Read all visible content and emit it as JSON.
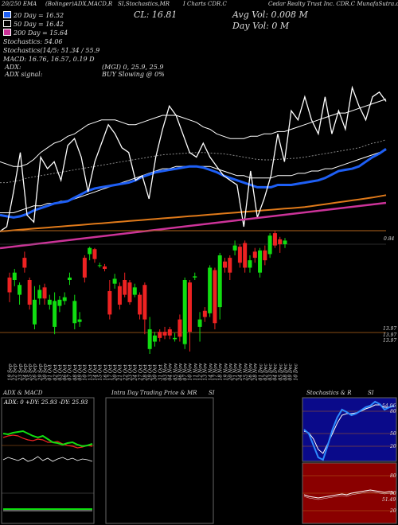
{
  "header": {
    "line1": [
      "20/250 EMA",
      "(Bolinger)ADX,MACD,R",
      "SI,Stochastics,MR",
      "I Charts CDR.C",
      "Cedar Realty Trust Inc. CDR.C MunafaSutra.com"
    ],
    "close": "CL: 16.81",
    "avg_vol": "Avg Vol: 0.008  M",
    "day_vol": "Day Vol: 0   M",
    "legend": [
      {
        "label": "20  Day = 16.52",
        "color": "#1e5ff5"
      },
      {
        "label": "50  Day = 16.42",
        "color": "#000000"
      },
      {
        "label": "200  Day = 15.64",
        "color": "#cc3399"
      }
    ],
    "info_lines": [
      "Stochastics: 54.06",
      "Stochastics(14/5: 51.34  / 55.9",
      "MACD: 16.76,  16.57,  0.19 D"
    ],
    "adx": "ADX:",
    "adx_mid": "(MGI) 0,  25.9,  25.9",
    "adx_signal": "ADX  signal:",
    "adx_signal_mid": "BUY Slowing @ 0%"
  },
  "price_labels": {
    "top": "0.84",
    "bottom1": "13.97",
    "bottom2": "13.97",
    "bottom3": "13.97"
  },
  "dates": [
    "19 Sep",
    "22 Sep",
    "23 Sep",
    "24 Sep",
    "25 Sep",
    "26 Sep",
    "29 Sep",
    "30 Sep",
    "01 Oct",
    "02 Oct",
    "03 Oct",
    "06 Oct",
    "07 Oct",
    "08 Oct",
    "09 Oct",
    "10 Oct",
    "13 Oct",
    "14 Oct",
    "15 Oct",
    "16 Oct",
    "17 Oct",
    "20 Oct",
    "21 Oct",
    "22 Oct",
    "23 Oct",
    "24 Oct",
    "27 Oct",
    "28 Oct",
    "29 Oct",
    "30 Oct",
    "31 Oct",
    "03 Nov",
    "04 Nov",
    "05 Nov",
    "06 Nov",
    "07 Nov",
    "10 Nov",
    "11 Nov",
    "12 Nov",
    "13 Nov",
    "14 Nov",
    "17 Nov",
    "18 Nov",
    "19 Nov",
    "20 Nov",
    "21 Nov",
    "24 Nov",
    "25 Nov",
    "26 Nov",
    "28 Nov",
    "01 Dec",
    "02 Dec",
    "03 Dec",
    "04 Dec",
    "05 Dec",
    "08 Dec",
    "09 Dec",
    "10 Dec"
  ],
  "panels": {
    "adx": {
      "title": "ADX  & MACD",
      "values": "ADX: 0   +DY: 25.93  -DY: 25.93"
    },
    "intraday": {
      "title": "Intra Day Trading Price  & MR",
      "si": "SI"
    },
    "stoch": {
      "title": "Stochastics & R",
      "si": "SI",
      "labels": [
        "80",
        "50",
        "20"
      ],
      "value": "54.06"
    },
    "rsi": {
      "labels": [
        "80",
        "50",
        "20"
      ],
      "value": "51.49"
    }
  },
  "chart_data": {
    "type": "candlestick",
    "series": [
      {
        "name": "20  Day = 16.52",
        "color": "#1e5ff5"
      },
      {
        "name": "50  Day = 16.42",
        "color": "#000000"
      },
      {
        "name": "200  Day = 15.64",
        "color": "#cc3399"
      }
    ],
    "candles": [
      {
        "o": 0.62,
        "c": 0.5,
        "h": 0.66,
        "l": 0.42
      },
      {
        "o": 0.6,
        "c": 0.66,
        "h": 0.69,
        "l": 0.55
      },
      {
        "o": 0.48,
        "c": 0.56,
        "h": 0.58,
        "l": 0.4
      },
      {
        "o": 0.78,
        "c": 0.7,
        "h": 0.83,
        "l": 0.66
      },
      {
        "o": 0.6,
        "c": 0.4,
        "h": 0.62,
        "l": 0.36
      },
      {
        "o": 0.24,
        "c": 0.44,
        "h": 0.55,
        "l": 0.2
      },
      {
        "o": 0.45,
        "c": 0.52,
        "h": 0.56,
        "l": 0.4
      },
      {
        "o": 0.54,
        "c": 0.45,
        "h": 0.57,
        "l": 0.4
      },
      {
        "o": 0.4,
        "c": 0.44,
        "h": 0.48,
        "l": 0.36
      },
      {
        "o": 0.22,
        "c": 0.43,
        "h": 0.5,
        "l": 0.16
      },
      {
        "o": 0.39,
        "c": 0.44,
        "h": 0.47,
        "l": 0.34
      },
      {
        "o": 0.43,
        "c": 0.46,
        "h": 0.5,
        "l": 0.4
      },
      {
        "o": 0.6,
        "c": 0.62,
        "h": 0.66,
        "l": 0.56
      },
      {
        "o": 0.25,
        "c": 0.43,
        "h": 0.48,
        "l": 0.2
      },
      {
        "o": 0.26,
        "c": 0.28,
        "h": 0.34,
        "l": 0.22
      },
      {
        "o": 0.78,
        "c": 0.62,
        "h": 0.8,
        "l": 0.58
      },
      {
        "o": 0.81,
        "c": 0.86,
        "h": 0.87,
        "l": 0.76
      },
      {
        "o": 0.85,
        "c": 0.77,
        "h": 0.86,
        "l": 0.74
      },
      {
        "o": 0.72,
        "c": 0.72,
        "h": 0.74,
        "l": 0.7
      },
      {
        "o": 0.71,
        "c": 0.69,
        "h": 0.73,
        "l": 0.67
      },
      {
        "o": 0.51,
        "c": 0.32,
        "h": 0.6,
        "l": 0.28
      },
      {
        "o": 0.57,
        "c": 0.61,
        "h": 0.65,
        "l": 0.53
      },
      {
        "o": 0.55,
        "c": 0.4,
        "h": 0.58,
        "l": 0.36
      },
      {
        "o": 0.6,
        "c": 0.48,
        "h": 0.66,
        "l": 0.46
      },
      {
        "o": 0.58,
        "c": 0.42,
        "h": 0.6,
        "l": 0.4
      },
      {
        "o": 0.48,
        "c": 0.54,
        "h": 0.57,
        "l": 0.46
      },
      {
        "o": 0.48,
        "c": 0.32,
        "h": 0.5,
        "l": 0.28
      },
      {
        "o": 0.56,
        "c": 0.28,
        "h": 0.58,
        "l": 0.16
      },
      {
        "o": 0.04,
        "c": 0.2,
        "h": 0.3,
        "l": 0.0
      },
      {
        "o": 0.1,
        "c": 0.15,
        "h": 0.18,
        "l": 0.06
      },
      {
        "o": 0.18,
        "c": 0.13,
        "h": 0.2,
        "l": 0.1
      },
      {
        "o": 0.18,
        "c": 0.15,
        "h": 0.22,
        "l": 0.12
      },
      {
        "o": 0.2,
        "c": 0.15,
        "h": 0.22,
        "l": 0.12
      },
      {
        "o": 0.12,
        "c": 0.13,
        "h": 0.17,
        "l": 0.1
      },
      {
        "o": 0.28,
        "c": 0.14,
        "h": 0.32,
        "l": 0.1
      },
      {
        "o": 0.08,
        "c": 0.6,
        "h": 0.62,
        "l": 0.04
      },
      {
        "o": 0.58,
        "c": 0.18,
        "h": 0.6,
        "l": 0.02
      },
      {
        "o": 0.62,
        "c": 0.63,
        "h": 0.66,
        "l": 0.6
      },
      {
        "o": 0.22,
        "c": 0.28,
        "h": 0.34,
        "l": 0.1
      },
      {
        "o": 0.35,
        "c": 0.3,
        "h": 0.38,
        "l": 0.26
      },
      {
        "o": 0.33,
        "c": 0.7,
        "h": 0.72,
        "l": 0.3
      },
      {
        "o": 0.68,
        "c": 0.25,
        "h": 0.7,
        "l": 0.2
      },
      {
        "o": 0.38,
        "c": 0.8,
        "h": 0.82,
        "l": 0.28
      },
      {
        "o": 0.75,
        "c": 0.7,
        "h": 0.78,
        "l": 0.66
      },
      {
        "o": 0.78,
        "c": 0.66,
        "h": 0.8,
        "l": 0.6
      },
      {
        "o": 0.84,
        "c": 0.88,
        "h": 0.92,
        "l": 0.8
      },
      {
        "o": 0.87,
        "c": 0.74,
        "h": 0.89,
        "l": 0.7
      },
      {
        "o": 0.9,
        "c": 0.7,
        "h": 0.92,
        "l": 0.66
      },
      {
        "o": 0.7,
        "c": 0.76,
        "h": 0.8,
        "l": 0.66
      },
      {
        "o": 0.83,
        "c": 0.78,
        "h": 0.86,
        "l": 0.74
      },
      {
        "o": 0.66,
        "c": 0.84,
        "h": 0.86,
        "l": 0.62
      },
      {
        "o": 0.84,
        "c": 0.76,
        "h": 0.88,
        "l": 0.72
      },
      {
        "o": 0.81,
        "c": 0.96,
        "h": 0.98,
        "l": 0.78
      },
      {
        "o": 0.98,
        "c": 0.88,
        "h": 1.0,
        "l": 0.86
      },
      {
        "o": 0.93,
        "c": 0.89,
        "h": 0.95,
        "l": 0.82
      },
      {
        "o": 0.89,
        "c": 0.92,
        "h": 0.94,
        "l": 0.86
      }
    ],
    "ema20": [
      0.57,
      0.565,
      0.56,
      0.565,
      0.575,
      0.59,
      0.6,
      0.61,
      0.62,
      0.625,
      0.63,
      0.645,
      0.66,
      0.675,
      0.685,
      0.69,
      0.695,
      0.7,
      0.705,
      0.71,
      0.72,
      0.735,
      0.745,
      0.755,
      0.76,
      0.765,
      0.77,
      0.775,
      0.78,
      0.78,
      0.775,
      0.765,
      0.755,
      0.74,
      0.73,
      0.72,
      0.71,
      0.7,
      0.69,
      0.69,
      0.69,
      0.7,
      0.7,
      0.7,
      0.705,
      0.71,
      0.715,
      0.72,
      0.73,
      0.745,
      0.76,
      0.765,
      0.77,
      0.78,
      0.8,
      0.82,
      0.835,
      0.855
    ],
    "ema50": [
      0.59,
      0.59,
      0.595,
      0.6,
      0.61,
      0.615,
      0.62,
      0.625,
      0.63,
      0.635,
      0.64,
      0.645,
      0.65,
      0.655,
      0.66,
      0.665,
      0.67,
      0.675,
      0.68,
      0.685,
      0.69,
      0.695,
      0.7,
      0.705,
      0.71,
      0.712,
      0.714,
      0.716,
      0.718,
      0.72,
      0.72,
      0.718,
      0.716,
      0.714,
      0.71,
      0.705,
      0.7,
      0.695,
      0.69,
      0.688,
      0.688,
      0.69,
      0.692,
      0.694,
      0.696,
      0.7,
      0.705,
      0.71,
      0.715,
      0.72,
      0.725,
      0.73,
      0.735,
      0.74,
      0.75,
      0.76,
      0.765,
      0.775
    ],
    "ema200": [
      0.42,
      0.422,
      0.424,
      0.426,
      0.428,
      0.43,
      0.432,
      0.434,
      0.436,
      0.438,
      0.44,
      0.442,
      0.444,
      0.446,
      0.448,
      0.45,
      0.452,
      0.454,
      0.456,
      0.458,
      0.46,
      0.462,
      0.464,
      0.466,
      0.468,
      0.47,
      0.472,
      0.474,
      0.476,
      0.478,
      0.48,
      0.482,
      0.484,
      0.486,
      0.488,
      0.49,
      0.492,
      0.494,
      0.496,
      0.498,
      0.5,
      0.502,
      0.504,
      0.506,
      0.508,
      0.51,
      0.514,
      0.518,
      0.522,
      0.526,
      0.53,
      0.534,
      0.538,
      0.542,
      0.546,
      0.55,
      0.555,
      0.56
    ],
    "bb_upper": [
      0.68,
      0.67,
      0.66,
      0.66,
      0.67,
      0.69,
      0.72,
      0.74,
      0.76,
      0.77,
      0.79,
      0.8,
      0.82,
      0.84,
      0.85,
      0.86,
      0.86,
      0.86,
      0.85,
      0.84,
      0.84,
      0.85,
      0.86,
      0.87,
      0.88,
      0.88,
      0.88,
      0.87,
      0.86,
      0.85,
      0.83,
      0.82,
      0.8,
      0.79,
      0.78,
      0.78,
      0.78,
      0.79,
      0.79,
      0.8,
      0.8,
      0.81,
      0.81,
      0.82,
      0.83,
      0.84,
      0.85,
      0.86,
      0.87,
      0.88,
      0.89,
      0.89,
      0.9,
      0.91,
      0.92,
      0.93,
      0.94,
      0.95
    ],
    "bb_lower": [
      0.46,
      0.46,
      0.46,
      0.47,
      0.48,
      0.49,
      0.49,
      0.5,
      0.5,
      0.51,
      0.51,
      0.52,
      0.53,
      0.54,
      0.55,
      0.56,
      0.57,
      0.58,
      0.59,
      0.6,
      0.61,
      0.62,
      0.63,
      0.64,
      0.65,
      0.65,
      0.66,
      0.66,
      0.66,
      0.66,
      0.66,
      0.66,
      0.65,
      0.64,
      0.63,
      0.62,
      0.62,
      0.61,
      0.61,
      0.61,
      0.61,
      0.62,
      0.62,
      0.62,
      0.63,
      0.63,
      0.64,
      0.64,
      0.65,
      0.65,
      0.66,
      0.67,
      0.68,
      0.69,
      0.7,
      0.71,
      0.72,
      0.73
    ],
    "price_line": [
      0.38,
      0.4,
      0.55,
      0.72,
      0.45,
      0.42,
      0.7,
      0.65,
      0.68,
      0.6,
      0.75,
      0.78,
      0.7,
      0.55,
      0.68,
      0.76,
      0.84,
      0.8,
      0.74,
      0.72,
      0.6,
      0.62,
      0.52,
      0.7,
      0.82,
      0.92,
      0.88,
      0.8,
      0.72,
      0.7,
      0.76,
      0.7,
      0.66,
      0.62,
      0.6,
      0.58,
      0.4,
      0.64,
      0.44,
      0.52,
      0.62,
      0.8,
      0.68,
      0.9,
      0.86,
      0.96,
      0.86,
      0.8,
      0.96,
      0.8,
      0.9,
      0.82,
      1.0,
      0.92,
      0.86,
      0.96,
      0.98,
      0.94
    ],
    "adx_values": {
      "adx": 0,
      "plus_di": 25.93,
      "minus_di": 25.93
    },
    "stochastics": {
      "value": 54.06,
      "k": 51.34,
      "d": 55.9
    },
    "rsi": 51.49
  }
}
